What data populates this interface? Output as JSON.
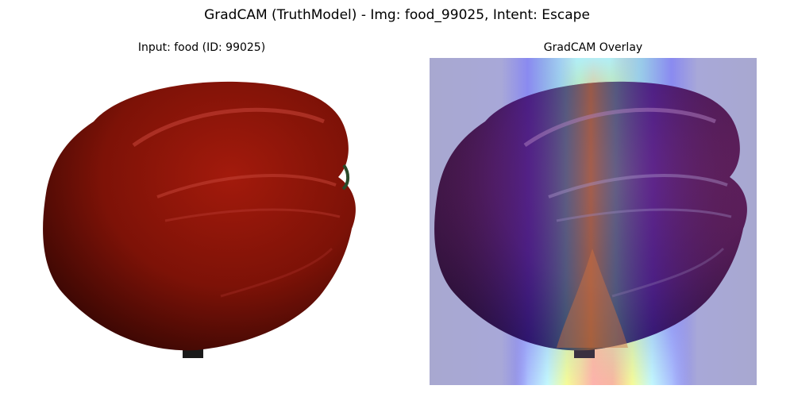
{
  "figure": {
    "suptitle": "GradCAM (TruthModel) - Img: food_99025, Intent: Escape"
  },
  "panels": {
    "input": {
      "title": "Input: food (ID: 99025)"
    },
    "overlay": {
      "title": "GradCAM Overlay"
    }
  },
  "colors": {
    "pepper_red": "#8a1408",
    "pepper_dark": "#3a0804",
    "stem": "#1a1a1a",
    "overlay_background": "#aaaad2",
    "heatmap_blue": "#2020ff",
    "heatmap_cyan": "#80ffff",
    "heatmap_yellow": "#ffff60",
    "heatmap_red": "#ff4040"
  }
}
